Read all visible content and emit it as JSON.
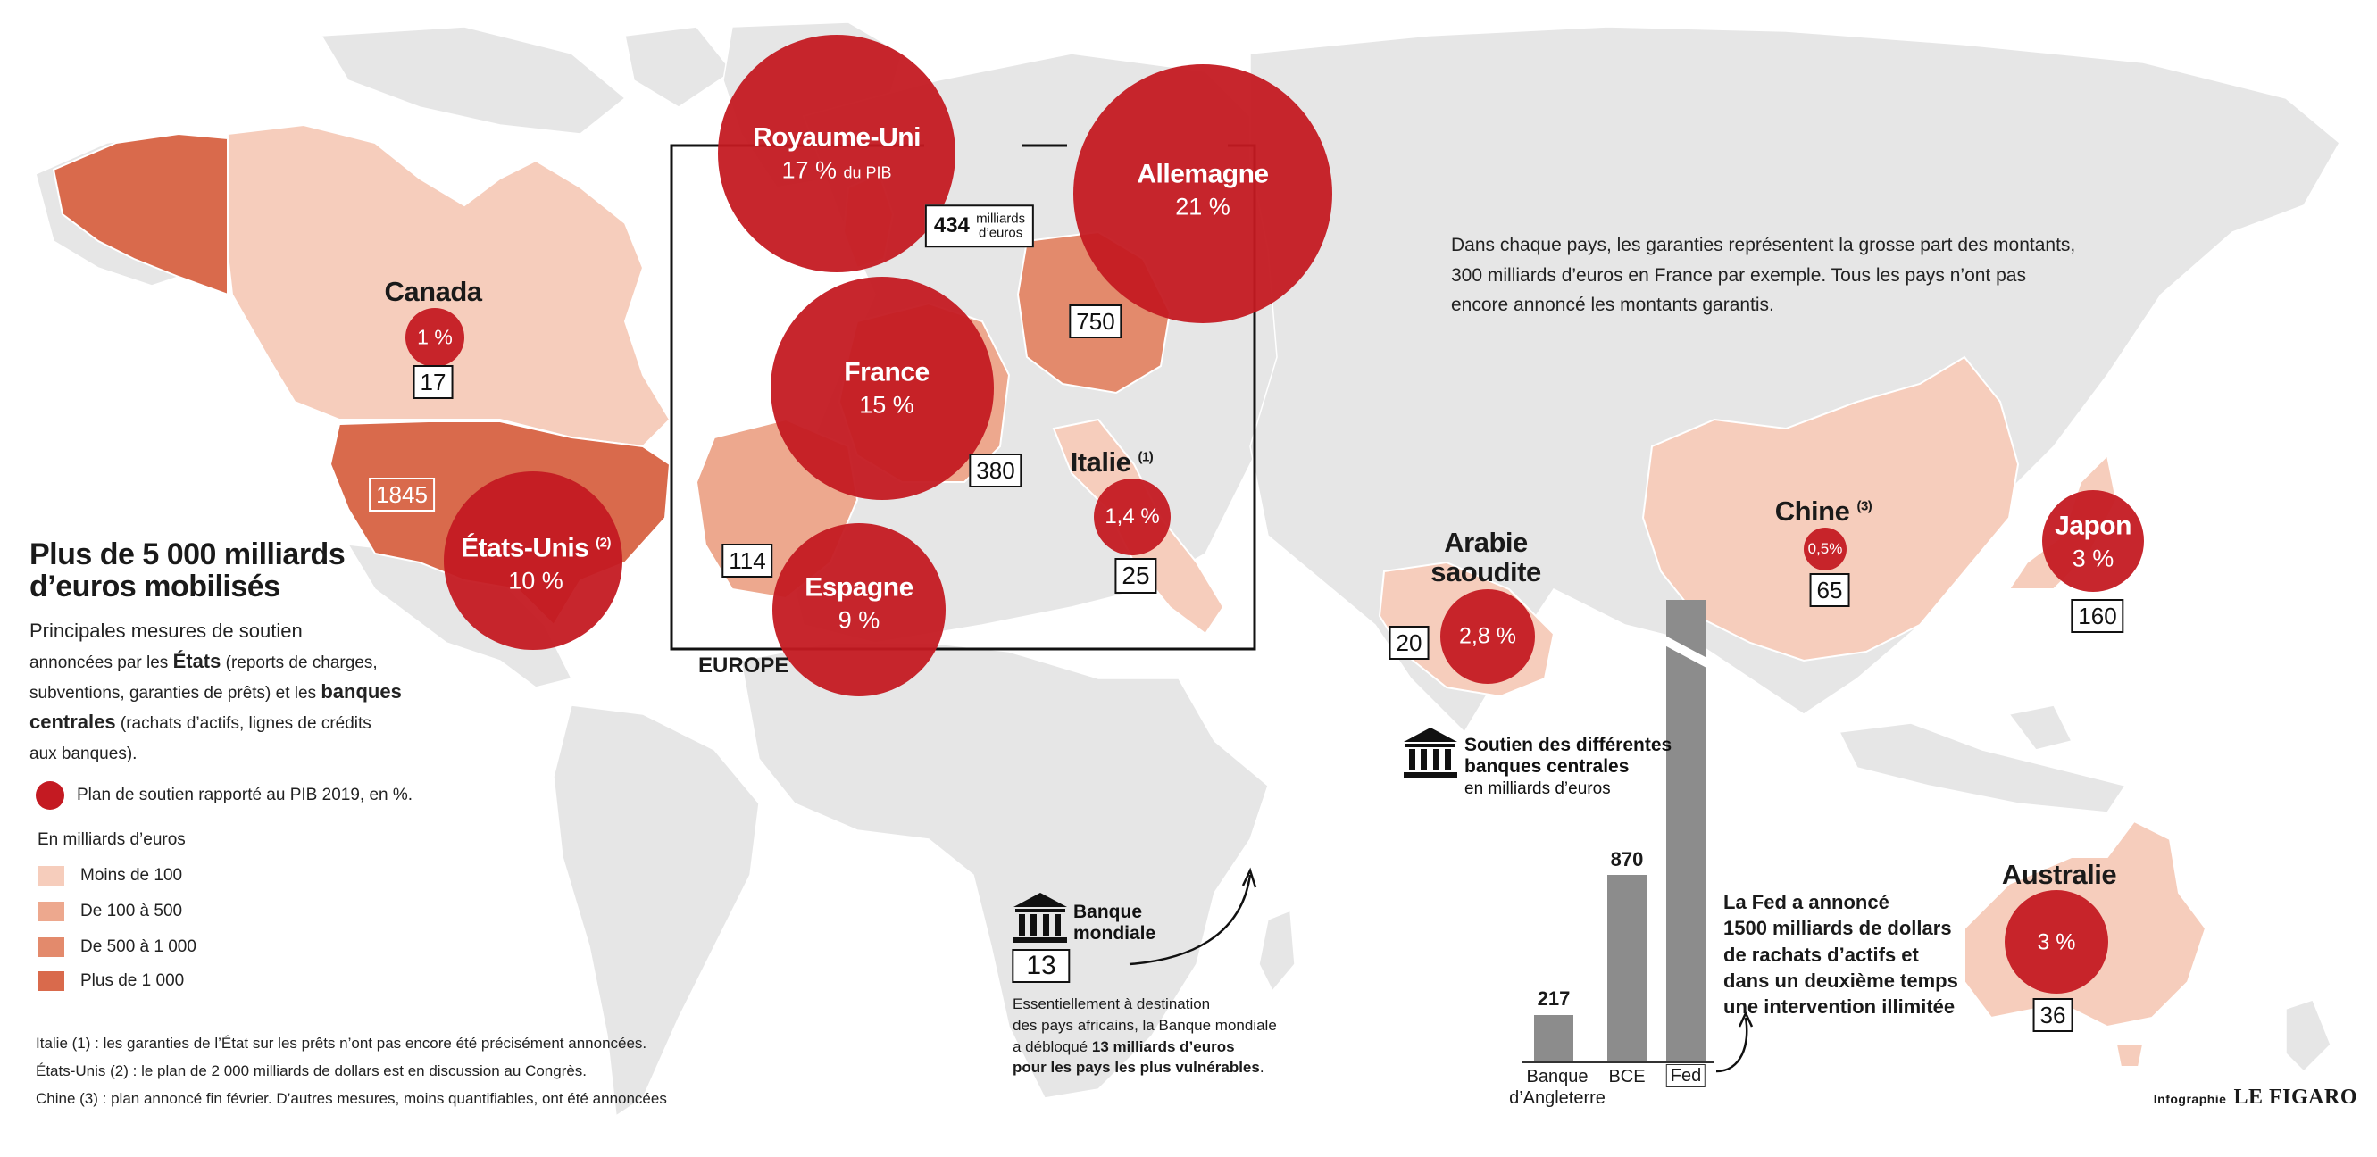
{
  "title_line1": "Plus de 5 000 milliards",
  "title_line2": "d’euros mobilisés",
  "subtitle": {
    "l1": "Principales mesures de soutien",
    "l2a": "annoncées par les ",
    "l2b": "États",
    "l2c": " (reports de charges,",
    "l3a": "subventions, garanties de prêts) et les ",
    "l3b": "banques",
    "l4a": "centrales",
    "l4b": " (rachats d’actifs, lignes de crédits",
    "l5": "aux banques)."
  },
  "legend": {
    "bubble": "Plan de soutien rapporté au PIB 2019, en %.",
    "unit": "En milliards d’euros",
    "bins": [
      {
        "label": "Moins de 100",
        "color": "#f6cdbc"
      },
      {
        "label": "De 100 à 500",
        "color": "#eda88e"
      },
      {
        "label": "De 500 à 1 000",
        "color": "#e38a6c"
      },
      {
        "label": "Plus de 1 000",
        "color": "#d96a4c"
      }
    ],
    "bubble_color": "#c41a22"
  },
  "notes": [
    "Italie (1) : les garanties de l’État sur les prêts n’ont pas encore été précisément annoncées.",
    "États-Unis (2) : le plan de 2 000 milliards de dollars est en discussion au Congrès.",
    "Chine (3) : plan annoncé fin février. D’autres mesures, moins quantifiables, ont été annoncées"
  ],
  "countries": [
    {
      "name": "Canada",
      "pct": "1 %",
      "amount": "17"
    },
    {
      "name": "États-Unis",
      "sup": "(2)",
      "pct": "10 %",
      "amount": "1845"
    },
    {
      "name": "Royaume-Uni",
      "pct": "17 %",
      "pct_suffix": "du PIB",
      "amount": "434",
      "amount_unit_l1": "milliards",
      "amount_unit_l2": "d’euros"
    },
    {
      "name": "Allemagne",
      "pct": "21 %",
      "amount": "750"
    },
    {
      "name": "France",
      "pct": "15 %",
      "amount": "380"
    },
    {
      "name": "Espagne",
      "pct": "9 %",
      "amount": "114"
    },
    {
      "name": "Italie",
      "sup": "(1)",
      "pct": "1,4 %",
      "amount": "25"
    },
    {
      "name": "Arabie saoudite",
      "name_l1": "Arabie",
      "name_l2": "saoudite",
      "pct": "2,8 %",
      "amount": "20"
    },
    {
      "name": "Chine",
      "sup": "(3)",
      "pct": "0,5%",
      "amount": "65"
    },
    {
      "name": "Japon",
      "pct": "3 %",
      "amount": "160"
    },
    {
      "name": "Australie",
      "pct": "3 %",
      "amount": "36"
    }
  ],
  "europe_label": "EUROPE",
  "guarantees_text": [
    "Dans chaque pays, les garanties représentent la grosse part des montants,",
    "300 milliards d’euros en France par exemple. Tous les pays n’ont pas",
    "encore annoncé les montants garantis."
  ],
  "central_banks": {
    "title_l1": "Soutien des différentes",
    "title_l2": "banques centrales",
    "unit": "en milliards d’euros"
  },
  "chart_data": {
    "type": "bar",
    "categories": [
      "Banque d’Angleterre",
      "BCE",
      "Fed"
    ],
    "category_lines": [
      [
        "Banque",
        "d’Angleterre"
      ],
      [
        "BCE"
      ],
      [
        "Fed"
      ]
    ],
    "values": [
      217,
      870,
      null
    ],
    "value_labels": [
      "217",
      "870",
      ""
    ],
    "unit": "en milliards d’euros",
    "note": "Fed bar shown with break (illimitée)"
  },
  "fed_note": [
    "La Fed a annoncé",
    "1500 milliards de dollars",
    "de rachats d’actifs et",
    "dans un deuxième temps",
    "une intervention illimitée"
  ],
  "world_bank": {
    "label_l1": "Banque",
    "label_l2": "mondiale",
    "amount": "13",
    "text_l1": "Essentiellement à destination",
    "text_l2": "des pays africains, la Banque mondiale",
    "text_l3a": "a débloqué ",
    "text_l3b": "13 milliards d’euros",
    "text_l4": "pour les pays les plus vulnérables",
    "text_l4_end": "."
  },
  "credit": {
    "prefix": "Infographie",
    "brand": "LE FIGARO"
  },
  "icons": [
    "bank-icon"
  ]
}
